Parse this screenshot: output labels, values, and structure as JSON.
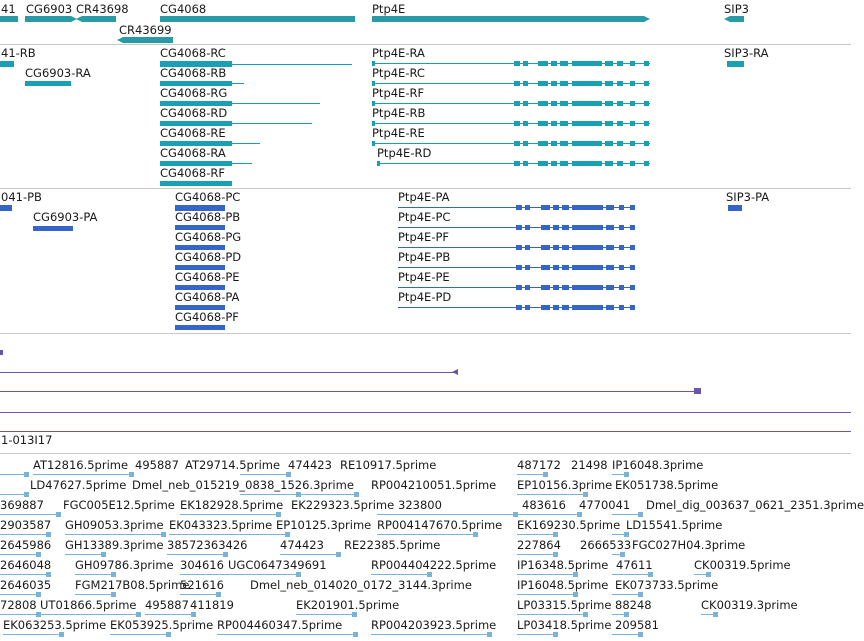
{
  "colors": {
    "gene": "#2a9aa6",
    "transcript": "#1aa0b4",
    "protein": "#3565c8",
    "genome": "#6a55a8",
    "est": "#7ab3d8",
    "separator": "#c8c8c8",
    "text": "#1a1a1a"
  },
  "tracks": {
    "genes": {
      "labels": [
        "41",
        "CG6903",
        "CR43698",
        "CR43699",
        "CG4068",
        "Ptp4E",
        "SIP3"
      ]
    },
    "transcripts": {
      "labels": [
        "41-RB",
        "CG6903-RA",
        "CG4068-RC",
        "CG4068-RB",
        "CG4068-RG",
        "CG4068-RD",
        "CG4068-RE",
        "CG4068-RA",
        "CG4068-RF",
        "Ptp4E-RA",
        "Ptp4E-RC",
        "Ptp4E-RF",
        "Ptp4E-RB",
        "Ptp4E-RE",
        "Ptp4E-RD",
        "SIP3-RA"
      ]
    },
    "proteins": {
      "labels": [
        "041-PB",
        "CG6903-PA",
        "CG4068-PC",
        "CG4068-PB",
        "CG4068-PG",
        "CG4068-PD",
        "CG4068-PE",
        "CG4068-PA",
        "CG4068-PF",
        "Ptp4E-PA",
        "Ptp4E-PC",
        "Ptp4E-PF",
        "Ptp4E-PB",
        "Ptp4E-PE",
        "Ptp4E-PD",
        "SIP3-PA"
      ]
    },
    "clone": {
      "label": "1-013I17"
    },
    "ests": {
      "labels": [
        "AT12816.5prime",
        "495887",
        "AT29714.5prime",
        "474423",
        "RE10917.5prime",
        "487172",
        "21498",
        "IP16048.3prime",
        "LD47627.5prime",
        "Dmel_neb_015219_0838_1526.3prime",
        "RP004210051.5prime",
        "EP10156.3prime",
        "EK051738.5prime",
        "369887",
        "FGC005E12.5prime",
        "EK182928.5prime",
        "EK229323.5prime",
        "323800",
        "483616",
        "4770041",
        "Dmel_dig_003637_0621_2351.3prime",
        "2903587",
        "GH09053.3prime",
        "EK043323.5prime",
        "EP10125.3prime",
        "RP004147670.5prime",
        "EK169230.5prime",
        "LD15541.5prime",
        "2645986",
        "GH13389.3prime",
        "38572363426",
        "474423",
        "RE22385.5prime",
        "227864",
        "2666533",
        "FGC027H04.3prime",
        "2646048",
        "GH09786.3prime",
        "304616",
        "UGC0647349691",
        "RP004404222.5prime",
        "IP16348.5prime",
        "47611",
        "CK00319.5prime",
        "2646035",
        "FGM217B08.5prime",
        "521616",
        "Dmel_neb_014020_0172_3144.3prime",
        "IP16048.5prime",
        "EK073733.5prime",
        "72808",
        "UT01866.5prime",
        "495887",
        "411819",
        "EK201901.5prime",
        "LP03315.5prime",
        "88248",
        "CK00319.3prime",
        "EK063253.5prime",
        "EK053925.5prime",
        "RP004460347.5prime",
        "RP004203923.5prime",
        "LP03418.5prime",
        "209581"
      ]
    }
  }
}
